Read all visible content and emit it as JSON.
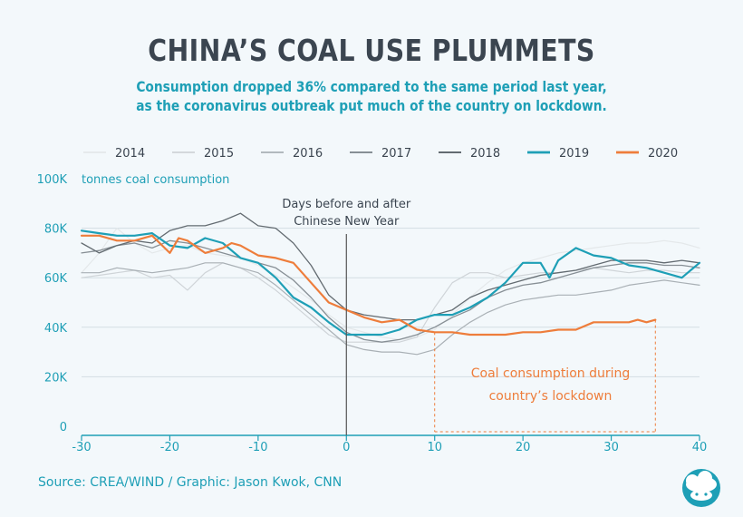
{
  "title": "CHINA’S COAL USE PLUMMETS",
  "subtitle_line1": "Consumption dropped 36% compared to the same period last year,",
  "subtitle_line2": "as the coronavirus outbreak put much of the country on lockdown.",
  "source": "Source: CREA/WIND / Graphic: Jason Kwok, CNN",
  "colors": {
    "accent": "#1e9fb6",
    "highlight": "#ee7d3b",
    "text": "#3b4550",
    "background": "#f3f8fb"
  },
  "logo_icon": "cloud-pig-logo-icon",
  "chart_data": {
    "type": "line",
    "ylabel": "tonnes coal consumption",
    "xlim": [
      -30,
      40
    ],
    "ylim": [
      0,
      100000
    ],
    "xticks": [
      -30,
      -20,
      -10,
      0,
      10,
      20,
      30,
      40
    ],
    "yticks": [
      0,
      20000,
      40000,
      60000,
      80000,
      100000
    ],
    "ytick_labels": [
      "0",
      "20K",
      "40K",
      "60K",
      "80K",
      "100K"
    ],
    "grid": true,
    "legend_position": "top",
    "vline": {
      "x": 0,
      "label_line1": "Days before and after",
      "label_line2": "Chinese New Year"
    },
    "annotation": {
      "line1": "Coal consumption during",
      "line2": "country’s lockdown",
      "x_start": 10,
      "x_end": 35
    },
    "series": [
      {
        "name": "2014",
        "color": "#e4e8ea",
        "width": 1.2,
        "x": [
          -30,
          -28,
          -26,
          -24,
          -22,
          -20,
          -18,
          -16,
          -14,
          -12,
          -10,
          -8,
          -6,
          -4,
          -2,
          0,
          2,
          4,
          6,
          8,
          10,
          12,
          14,
          16,
          18,
          20,
          22,
          24,
          26,
          28,
          30,
          32,
          34,
          36,
          38,
          40
        ],
        "y": [
          62000,
          70000,
          80000,
          74000,
          70000,
          72000,
          73000,
          70000,
          69000,
          68000,
          65000,
          61000,
          56000,
          51000,
          45000,
          40000,
          38000,
          36000,
          35000,
          36000,
          39000,
          45000,
          52000,
          58000,
          63000,
          66000,
          68000,
          70000,
          71000,
          72000,
          73000,
          74000,
          74000,
          75000,
          74000,
          72000
        ]
      },
      {
        "name": "2015",
        "color": "#cfd4d8",
        "width": 1.2,
        "x": [
          -30,
          -28,
          -26,
          -24,
          -22,
          -20,
          -18,
          -16,
          -14,
          -12,
          -10,
          -8,
          -6,
          -4,
          -2,
          0,
          2,
          4,
          6,
          8,
          10,
          12,
          14,
          16,
          18,
          20,
          22,
          24,
          26,
          28,
          30,
          32,
          34,
          36,
          38,
          40
        ],
        "y": [
          60000,
          61000,
          62000,
          63000,
          60000,
          61000,
          55000,
          62000,
          66000,
          64000,
          60000,
          55000,
          49000,
          43000,
          37000,
          34000,
          34000,
          34000,
          34000,
          36000,
          48000,
          58000,
          62000,
          62000,
          60000,
          61000,
          62000,
          62000,
          63000,
          64000,
          63000,
          62000,
          63000,
          63000,
          62000,
          62000
        ]
      },
      {
        "name": "2016",
        "color": "#a9b0b5",
        "width": 1.2,
        "x": [
          -30,
          -28,
          -26,
          -24,
          -22,
          -20,
          -18,
          -16,
          -14,
          -12,
          -10,
          -8,
          -6,
          -4,
          -2,
          0,
          2,
          4,
          6,
          8,
          10,
          12,
          14,
          16,
          18,
          20,
          22,
          24,
          26,
          28,
          30,
          32,
          34,
          36,
          38,
          40
        ],
        "y": [
          62000,
          62000,
          64000,
          63000,
          62000,
          63000,
          64000,
          66000,
          66000,
          64000,
          62000,
          57000,
          51000,
          45000,
          39000,
          33000,
          31000,
          30000,
          30000,
          29000,
          31000,
          37000,
          42000,
          46000,
          49000,
          51000,
          52000,
          53000,
          53000,
          54000,
          55000,
          57000,
          58000,
          59000,
          58000,
          57000
        ]
      },
      {
        "name": "2017",
        "color": "#878f95",
        "width": 1.3,
        "x": [
          -30,
          -28,
          -26,
          -24,
          -22,
          -20,
          -18,
          -16,
          -14,
          -12,
          -10,
          -8,
          -6,
          -4,
          -2,
          0,
          2,
          4,
          6,
          8,
          10,
          12,
          14,
          16,
          18,
          20,
          22,
          24,
          26,
          28,
          30,
          32,
          34,
          36,
          38,
          40
        ],
        "y": [
          70000,
          71000,
          73000,
          74000,
          72000,
          75000,
          74000,
          72000,
          70000,
          68000,
          66000,
          64000,
          59000,
          52000,
          44000,
          38000,
          35000,
          34000,
          35000,
          37000,
          40000,
          44000,
          47000,
          52000,
          55000,
          57000,
          58000,
          60000,
          62000,
          64000,
          65000,
          66000,
          66000,
          65000,
          65000,
          64000
        ]
      },
      {
        "name": "2018",
        "color": "#636b71",
        "width": 1.3,
        "x": [
          -30,
          -28,
          -26,
          -24,
          -22,
          -20,
          -18,
          -16,
          -14,
          -12,
          -10,
          -8,
          -6,
          -4,
          -2,
          0,
          2,
          4,
          6,
          8,
          10,
          12,
          14,
          16,
          18,
          20,
          22,
          24,
          26,
          28,
          30,
          32,
          34,
          36,
          38,
          40
        ],
        "y": [
          74000,
          70000,
          73000,
          75000,
          74000,
          79000,
          81000,
          81000,
          83000,
          86000,
          81000,
          80000,
          74000,
          65000,
          53000,
          47000,
          45000,
          44000,
          43000,
          43000,
          45000,
          47000,
          52000,
          55000,
          57000,
          59000,
          61000,
          62000,
          63000,
          65000,
          67000,
          67000,
          67000,
          66000,
          67000,
          66000
        ]
      },
      {
        "name": "2019",
        "color": "#1e9fb6",
        "width": 2.2,
        "x": [
          -30,
          -28,
          -26,
          -24,
          -22,
          -20,
          -18,
          -16,
          -14,
          -12,
          -10,
          -8,
          -6,
          -4,
          -2,
          0,
          2,
          4,
          6,
          8,
          10,
          12,
          14,
          16,
          18,
          20,
          22,
          23,
          24,
          26,
          28,
          30,
          32,
          34,
          36,
          38,
          40
        ],
        "y": [
          79000,
          78000,
          77000,
          77000,
          78000,
          73000,
          72000,
          76000,
          74000,
          68000,
          66000,
          60000,
          52000,
          48000,
          42000,
          37000,
          37000,
          37000,
          39000,
          43000,
          45000,
          45000,
          48000,
          52000,
          58000,
          66000,
          66000,
          60000,
          67000,
          72000,
          69000,
          68000,
          65000,
          64000,
          62000,
          60000,
          66000
        ]
      },
      {
        "name": "2020",
        "color": "#ee7d3b",
        "width": 2.2,
        "x": [
          -30,
          -28,
          -26,
          -24,
          -22,
          -20,
          -19,
          -18,
          -16,
          -14,
          -13,
          -12,
          -10,
          -8,
          -6,
          -4,
          -2,
          0,
          2,
          4,
          6,
          8,
          10,
          12,
          14,
          16,
          18,
          20,
          22,
          24,
          26,
          28,
          30,
          32,
          33,
          34,
          35
        ],
        "y": [
          77000,
          77000,
          75000,
          75000,
          77000,
          70000,
          76000,
          75000,
          70000,
          72000,
          74000,
          73000,
          69000,
          68000,
          66000,
          58000,
          50000,
          47000,
          44000,
          42000,
          43000,
          39000,
          38000,
          38000,
          37000,
          37000,
          37000,
          38000,
          38000,
          39000,
          39000,
          42000,
          42000,
          42000,
          43000,
          42000,
          43000
        ]
      }
    ]
  }
}
